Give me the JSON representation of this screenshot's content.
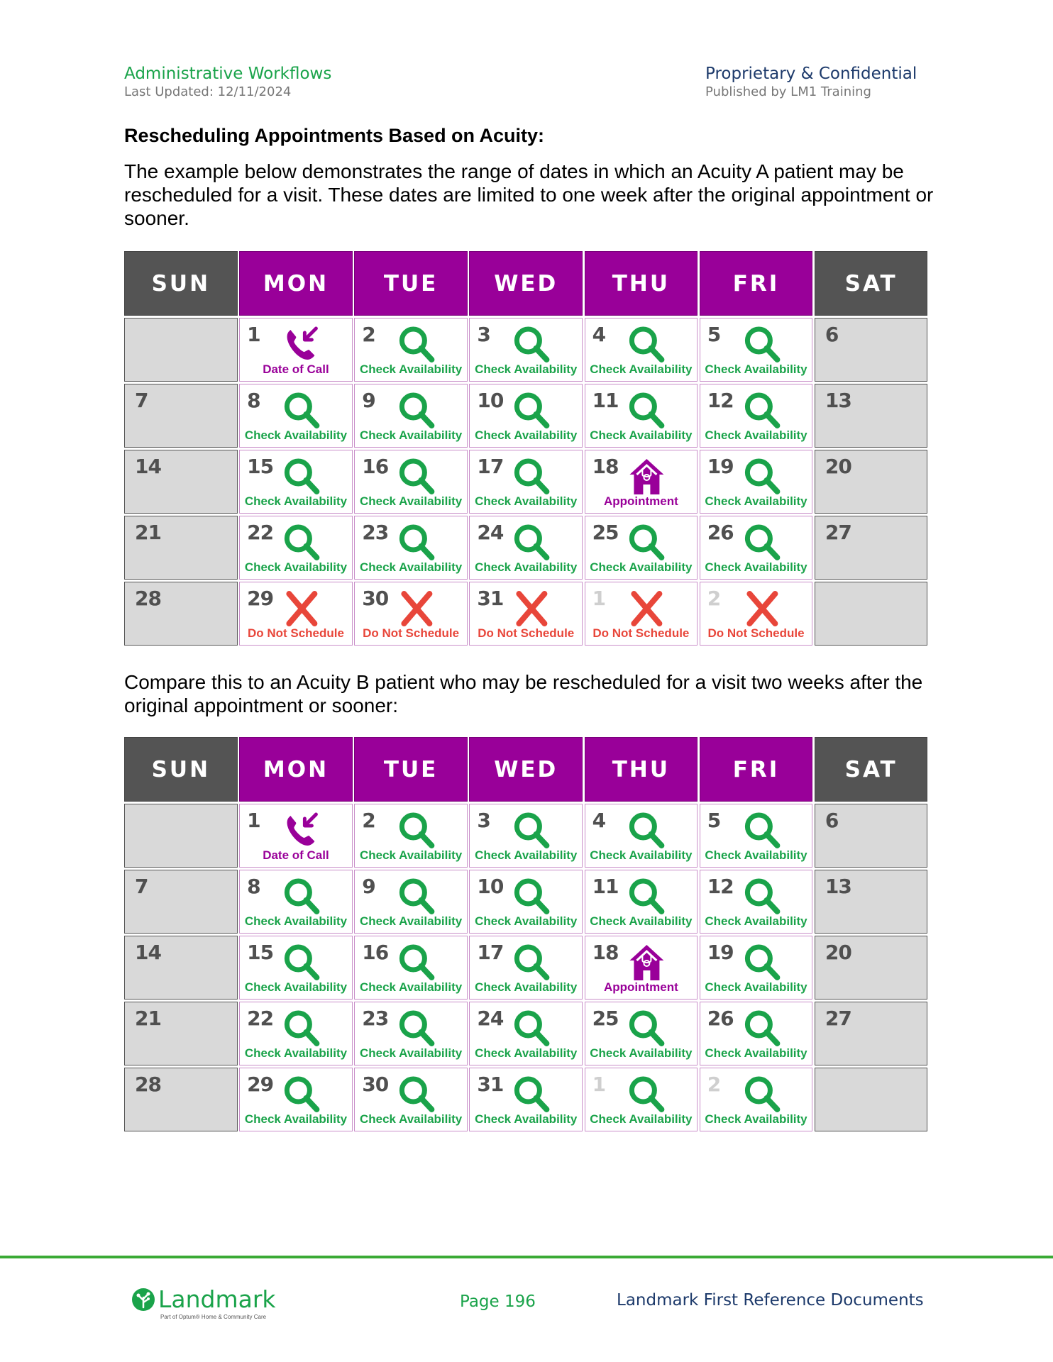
{
  "header": {
    "left_title": "Administrative Workflows",
    "left_sub": "Last Updated: 12/11/2024",
    "right_title": "Proprietary & Confidential",
    "right_sub": "Published by LM1 Training"
  },
  "section_title": "Rescheduling Appointments Based on Acuity:",
  "para1": "The example below demonstrates the range of dates in which an Acuity A patient may be rescheduled for a visit. These dates are limited to one week after the original appointment or sooner.",
  "para2": "Compare this to an Acuity B patient who may be rescheduled for a visit two weeks after the original appointment or sooner:",
  "days": [
    "SUN",
    "MON",
    "TUE",
    "WED",
    "THU",
    "FRI",
    "SAT"
  ],
  "labels": {
    "check": "Check Availability",
    "call": "Date of Call",
    "appt": "Appointment",
    "dns": "Do Not Schedule"
  },
  "colors": {
    "purple": "#990099",
    "green": "#1aa34a",
    "red": "#e8463a",
    "weekend_header": "#545454",
    "weekend_cell": "#d9d9d9"
  },
  "calendars": [
    {
      "name": "Acuity A",
      "rows": [
        [
          {
            "n": ""
          },
          {
            "n": "1",
            "t": "call"
          },
          {
            "n": "2",
            "t": "check"
          },
          {
            "n": "3",
            "t": "check"
          },
          {
            "n": "4",
            "t": "check"
          },
          {
            "n": "5",
            "t": "check"
          },
          {
            "n": "6"
          }
        ],
        [
          {
            "n": "7"
          },
          {
            "n": "8",
            "t": "check"
          },
          {
            "n": "9",
            "t": "check"
          },
          {
            "n": "10",
            "t": "check"
          },
          {
            "n": "11",
            "t": "check"
          },
          {
            "n": "12",
            "t": "check"
          },
          {
            "n": "13"
          }
        ],
        [
          {
            "n": "14"
          },
          {
            "n": "15",
            "t": "check"
          },
          {
            "n": "16",
            "t": "check"
          },
          {
            "n": "17",
            "t": "check"
          },
          {
            "n": "18",
            "t": "appt"
          },
          {
            "n": "19",
            "t": "check"
          },
          {
            "n": "20"
          }
        ],
        [
          {
            "n": "21"
          },
          {
            "n": "22",
            "t": "check"
          },
          {
            "n": "23",
            "t": "check"
          },
          {
            "n": "24",
            "t": "check"
          },
          {
            "n": "25",
            "t": "check"
          },
          {
            "n": "26",
            "t": "check"
          },
          {
            "n": "27"
          }
        ],
        [
          {
            "n": "28"
          },
          {
            "n": "29",
            "t": "dns"
          },
          {
            "n": "30",
            "t": "dns"
          },
          {
            "n": "31",
            "t": "dns"
          },
          {
            "n": "1",
            "t": "dns",
            "dim": true
          },
          {
            "n": "2",
            "t": "dns",
            "dim": true
          },
          {
            "n": ""
          }
        ]
      ]
    },
    {
      "name": "Acuity B",
      "rows": [
        [
          {
            "n": ""
          },
          {
            "n": "1",
            "t": "call"
          },
          {
            "n": "2",
            "t": "check"
          },
          {
            "n": "3",
            "t": "check"
          },
          {
            "n": "4",
            "t": "check"
          },
          {
            "n": "5",
            "t": "check"
          },
          {
            "n": "6"
          }
        ],
        [
          {
            "n": "7"
          },
          {
            "n": "8",
            "t": "check"
          },
          {
            "n": "9",
            "t": "check"
          },
          {
            "n": "10",
            "t": "check"
          },
          {
            "n": "11",
            "t": "check"
          },
          {
            "n": "12",
            "t": "check"
          },
          {
            "n": "13"
          }
        ],
        [
          {
            "n": "14"
          },
          {
            "n": "15",
            "t": "check"
          },
          {
            "n": "16",
            "t": "check"
          },
          {
            "n": "17",
            "t": "check"
          },
          {
            "n": "18",
            "t": "appt"
          },
          {
            "n": "19",
            "t": "check"
          },
          {
            "n": "20"
          }
        ],
        [
          {
            "n": "21"
          },
          {
            "n": "22",
            "t": "check"
          },
          {
            "n": "23",
            "t": "check"
          },
          {
            "n": "24",
            "t": "check"
          },
          {
            "n": "25",
            "t": "check"
          },
          {
            "n": "26",
            "t": "check"
          },
          {
            "n": "27"
          }
        ],
        [
          {
            "n": "28"
          },
          {
            "n": "29",
            "t": "check"
          },
          {
            "n": "30",
            "t": "check"
          },
          {
            "n": "31",
            "t": "check"
          },
          {
            "n": "1",
            "t": "check",
            "dim": true
          },
          {
            "n": "2",
            "t": "check",
            "dim": true
          },
          {
            "n": ""
          }
        ]
      ]
    }
  ],
  "footer": {
    "logo_text": "Landmark",
    "logo_sub": "Part of Optum® Home & Community Care",
    "page": "Page 196",
    "right": "Landmark First Reference Documents"
  }
}
